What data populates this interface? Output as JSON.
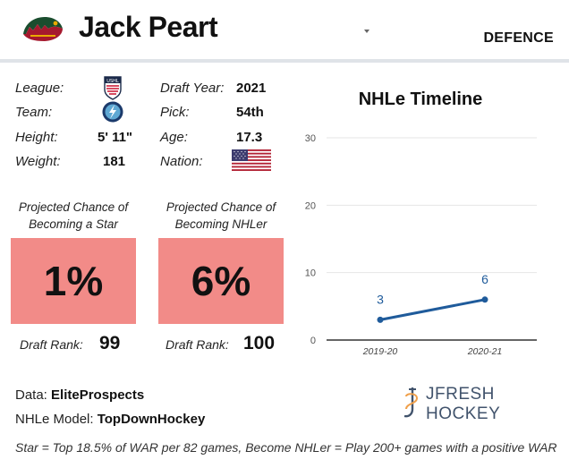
{
  "header": {
    "player_name": "Jack Peart",
    "position": "DEFENCE",
    "logo_icon": "minnesota-wild-logo-icon",
    "dropdown_icon": "chevron-down-icon"
  },
  "bio": {
    "league_label": "League:",
    "league_icon": "ushl-logo-icon",
    "team_label": "Team:",
    "team_icon": "fargo-force-logo-icon",
    "height_label": "Height:",
    "height_value": "5' 11\"",
    "weight_label": "Weight:",
    "weight_value": "181",
    "draft_year_label": "Draft Year:",
    "draft_year_value": "2021",
    "pick_label": "Pick:",
    "pick_value": "54th",
    "age_label": "Age:",
    "age_value": "17.3",
    "nation_label": "Nation:",
    "nation_icon": "usa-flag-icon"
  },
  "projections": {
    "star": {
      "label_line1": "Projected Chance of",
      "label_line2": "Becoming a Star",
      "value": "1%",
      "rank_label": "Draft Rank:",
      "rank_value": "99"
    },
    "nhler": {
      "label_line1": "Projected Chance of",
      "label_line2": "Becoming NHLer",
      "value": "6%",
      "rank_label": "Draft Rank:",
      "rank_value": "100"
    },
    "box_color": "#f28b88"
  },
  "chart_data": {
    "type": "line",
    "title": "NHLe Timeline",
    "x": [
      "2019-20",
      "2020-21"
    ],
    "series": [
      {
        "values": [
          3,
          6
        ]
      }
    ],
    "data_labels": [
      "3",
      "6"
    ],
    "yticks": [
      "0",
      "10",
      "20",
      "30"
    ],
    "ylim": [
      0,
      30
    ],
    "grid": true,
    "line_color": "#1f5b9b"
  },
  "footer": {
    "data_label": "Data: ",
    "data_value": "EliteProspects",
    "model_label": "NHLe Model: ",
    "model_value": "TopDownHockey",
    "brand": "JFRESH HOCKEY",
    "brand_icon": "jfresh-hockey-logo-icon",
    "note": "Star = Top 18.5% of WAR per 82 games, Become NHLer = Play 200+ games with a positive WAR"
  }
}
